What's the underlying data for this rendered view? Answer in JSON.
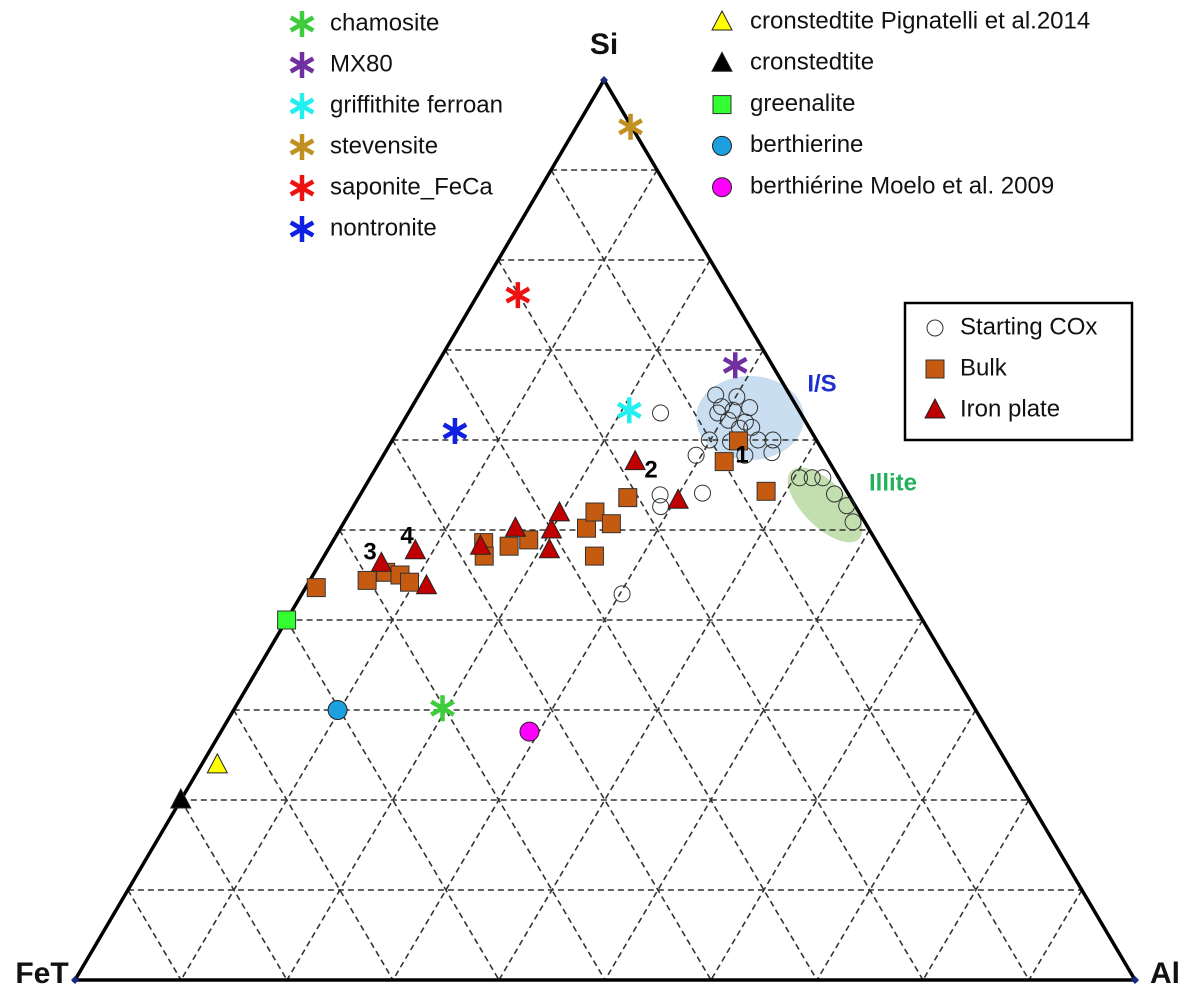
{
  "chart_data": {
    "type": "ternary",
    "top_label": "Si",
    "left_label": "FeT",
    "right_label": "Al",
    "ticks": [
      10,
      20,
      30,
      40,
      50,
      60,
      70,
      80,
      90
    ],
    "grid": true,
    "series": [
      {
        "name": "chamosite",
        "marker": "star",
        "color": "#3ccc3c",
        "legend": "upper-left",
        "si": [
          30.2
        ],
        "al": [
          19.6
        ],
        "fe": [
          50.2
        ]
      },
      {
        "name": "MX80",
        "marker": "star",
        "color": "#7030a0",
        "legend": "upper-left",
        "si": [
          68.3
        ],
        "al": [
          28.2
        ],
        "fe": [
          3.5
        ]
      },
      {
        "name": "griffithite ferroan",
        "marker": "star",
        "color": "#22f0f0",
        "legend": "upper-left",
        "si": [
          63.3
        ],
        "al": [
          20.7
        ],
        "fe": [
          16.0
        ]
      },
      {
        "name": "stevensite",
        "marker": "star",
        "color": "#c09020",
        "legend": "upper-left",
        "si": [
          94.8
        ],
        "al": [
          5.1
        ],
        "fe": [
          0.1
        ]
      },
      {
        "name": "saponite_FeCa",
        "marker": "star",
        "color": "#ee1111",
        "legend": "upper-left",
        "si": [
          76.1
        ],
        "al": [
          3.8
        ],
        "fe": [
          20.1
        ]
      },
      {
        "name": "nontronite",
        "marker": "star",
        "color": "#1020e0",
        "legend": "upper-left",
        "si": [
          61.0
        ],
        "al": [
          5.4
        ],
        "fe": [
          33.6
        ]
      },
      {
        "name": "cronstedtite Pignatelli  et al.2014",
        "marker": "triangle",
        "color": "#ffff00",
        "legend": "upper-right",
        "si": [
          23.9
        ],
        "al": [
          1.5
        ],
        "fe": [
          74.6
        ]
      },
      {
        "name": "cronstedtite",
        "marker": "triangle",
        "color": "#000000",
        "legend": "upper-right",
        "si": [
          20.0
        ],
        "al": [
          0
        ],
        "fe": [
          80.0
        ]
      },
      {
        "name": "greenalite",
        "marker": "square",
        "color": "#33ff33",
        "legend": "upper-right",
        "si": [
          40.0
        ],
        "al": [
          0
        ],
        "fe": [
          60.0
        ]
      },
      {
        "name": "berthierine",
        "marker": "circle",
        "color": "#1ca0e0",
        "legend": "upper-right",
        "si": [
          30.0
        ],
        "al": [
          9.8
        ],
        "fe": [
          60.2
        ]
      },
      {
        "name": "berthiérine Moelo et al. 2009",
        "marker": "circle",
        "color": "#ff00ff",
        "legend": "upper-right",
        "si": [
          27.6
        ],
        "al": [
          29.1
        ],
        "fe": [
          43.3
        ]
      },
      {
        "name": "Starting COx",
        "marker": "open-circle",
        "color": "#333333",
        "legend": "right",
        "si": [
          63.0,
          58.3,
          54.1,
          53.9,
          52.6,
          42.9,
          65.0,
          63.7,
          63.3,
          63.0,
          64.8,
          63.6,
          62.0,
          61.4,
          61.3,
          62.2,
          60.0,
          59.8,
          60.0,
          60.0,
          58.6,
          58.3,
          55.8,
          55.8,
          55.8,
          54.0,
          52.7,
          50.9
        ],
        "al": [
          23.8,
          29.5,
          32.2,
          28.3,
          29.0,
          30.2,
          28.0,
          29.2,
          30.5,
          29.2,
          30.1,
          31.9,
          32.3,
          33.2,
          32.1,
          30.6,
          29.9,
          32.0,
          34.5,
          35.9,
          36.5,
          34.1,
          40.5,
          41.7,
          42.7,
          44.7,
          46.5,
          48.0
        ],
        "fe": [
          13.2,
          12.2,
          13.7,
          17.8,
          18.4,
          26.9,
          7.0,
          7.1,
          6.2,
          7.8,
          5.1,
          4.5,
          5.7,
          5.4,
          6.6,
          7.2,
          10.1,
          8.2,
          5.5,
          4.1,
          4.9,
          7.6,
          3.7,
          2.5,
          1.5,
          1.3,
          0.8,
          1.1
        ]
      },
      {
        "name": "Bulk",
        "marker": "square",
        "color": "#c55a11",
        "legend": "right",
        "si": [
          43.6,
          44.4,
          45.3,
          45.0,
          44.2,
          48.6,
          47.1,
          48.2,
          48.9,
          50.2,
          52.0,
          50.7,
          47.1,
          53.6,
          57.6,
          59.9,
          54.3
        ],
        "al": [
          1.0,
          5.4,
          6.7,
          8.2,
          9.5,
          14.3,
          15.1,
          16.9,
          18.4,
          23.2,
          23.1,
          25.3,
          25.5,
          25.4,
          32.5,
          32.7,
          38.1
        ],
        "fe": [
          55.4,
          50.2,
          48.0,
          46.8,
          46.3,
          37.1,
          37.8,
          34.9,
          32.7,
          26.6,
          24.9,
          24.0,
          27.4,
          21.0,
          9.9,
          7.4,
          7.6
        ]
      },
      {
        "name": "Iron plate",
        "marker": "triangle",
        "color": "#c00000",
        "legend": "right",
        "si": [
          46.3,
          47.7,
          43.8,
          48.2,
          50.2,
          47.8,
          50.0,
          51.9,
          57.6,
          53.3
        ],
        "al": [
          5.8,
          8.3,
          11.3,
          14.2,
          16.5,
          20.9,
          20.0,
          19.8,
          24.1,
          30.3
        ],
        "fe": [
          47.9,
          44.0,
          44.9,
          37.6,
          33.3,
          31.3,
          30.0,
          28.3,
          18.3,
          16.4
        ]
      }
    ],
    "annotations": [
      {
        "text": "1",
        "color": "#000000"
      },
      {
        "text": "2",
        "color": "#000000"
      },
      {
        "text": "3",
        "color": "#000000"
      },
      {
        "text": "4",
        "color": "#000000"
      },
      {
        "text": "I/S",
        "color": "#2030d0"
      },
      {
        "text": "Illite",
        "color": "#22b05a"
      }
    ]
  }
}
